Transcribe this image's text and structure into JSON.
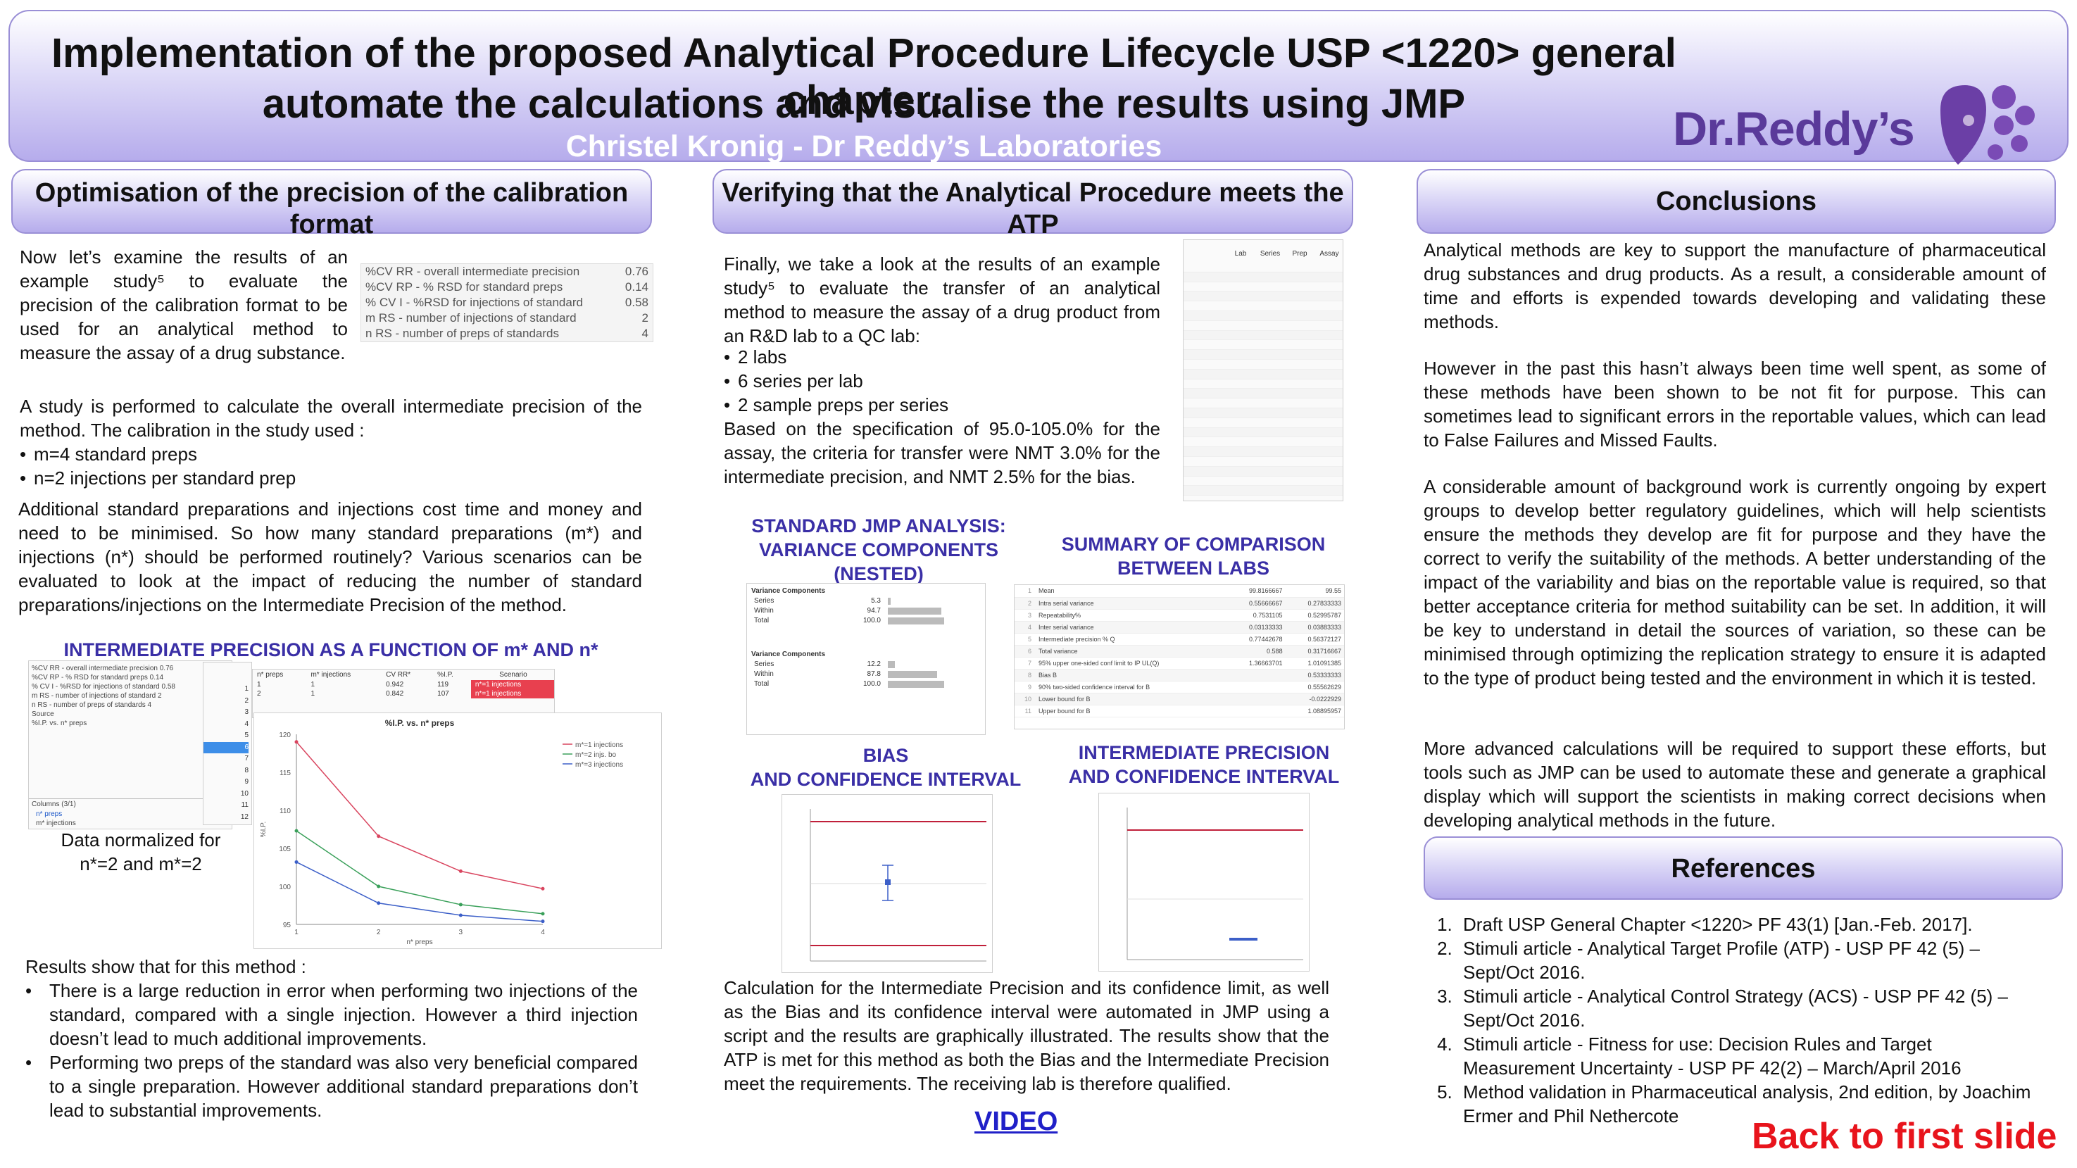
{
  "header": {
    "title_line1": "Implementation of the proposed Analytical Procedure Lifecycle USP <1220> general chapter:",
    "title_line2": "automate the calculations and visualise the results using JMP",
    "author": "Christel Kronig - Dr Reddy’s Laboratories",
    "logo_text": "Dr.Reddy’s"
  },
  "left": {
    "heading": "Optimisation of the precision of the calibration format",
    "intro": "Now let’s examine the results of an example study⁵ to evaluate the precision of the calibration format to be used for an analytical method to measure the assay of a drug substance.",
    "summary_table": [
      {
        "label": "%CV RR - overall intermediate precision",
        "value": "0.76"
      },
      {
        "label": "%CV RP - % RSD for standard preps",
        "value": "0.14"
      },
      {
        "label": "% CV I - %RSD for injections of standard",
        "value": "0.58"
      },
      {
        "label": "m RS - number of injections of standard",
        "value": "2"
      },
      {
        "label": "n RS - number of preps of standards",
        "value": "4"
      }
    ],
    "study_intro": "A study is performed to calculate the overall intermediate precision of the method. The calibration in the study used :",
    "study_bullets": [
      "m=4 standard preps",
      "n=2 injections per standard prep"
    ],
    "para2": "Additional standard preparations and injections cost time and money and need to be minimised. So how many standard preparations (m*) and injections (n*) should be performed routinely? Various scenarios can be evaluated to look at the impact of reducing the number of standard preparations/injections on the Intermediate Precision of the method.",
    "chart_heading": "INTERMEDIATE PRECISION AS A FUNCTION OF m* AND n*",
    "normalized_note_1": "Data normalized for",
    "normalized_note_2": "n*=2 and m*=2",
    "results_intro": "Results show that for this method :",
    "results_bullets": [
      "There is a large reduction in error when performing two injections of the standard, compared with a single injection. However a third injection doesn’t lead to much additional improvements.",
      "Performing two preps of the standard was also very beneficial compared to a single preparation. However additional standard preparations don’t lead to substantial improvements."
    ],
    "jmp_table_headers": [
      "n* preps",
      "m* injections",
      "CV RR*",
      "%I.P.",
      "Scenario"
    ],
    "jmp_table_rows": [
      [
        "1",
        "1",
        "0.942",
        "119",
        "n*=1 injections"
      ],
      [
        "2",
        "1",
        "0.842",
        "107",
        "n*=1 injections"
      ]
    ],
    "jmp_left_panel": [
      "%CV RR - overall intermediate precision 0.76",
      "%CV RP - % RSD for standard preps 0.14",
      "% CV I - %RSD for injections of standard 0.58",
      "m RS - number of injections of standard 2",
      "n RS - number of preps of standards 4",
      "Source",
      "%I.P. vs. n* preps"
    ],
    "jmp_columns_header": "Columns (3/1)",
    "jmp_columns": [
      "n* preps",
      "m* injections"
    ],
    "row_numbers": [
      "1",
      "2",
      "3",
      "4",
      "5",
      "6",
      "7",
      "8",
      "9",
      "10",
      "11",
      "12"
    ]
  },
  "chart_data": {
    "type": "line",
    "title": "%I.P. vs. n* preps",
    "xlabel": "n* preps",
    "ylabel": "%I.P.",
    "x": [
      1,
      2,
      3,
      4
    ],
    "ylim": [
      95,
      120
    ],
    "yticks": [
      95,
      100,
      105,
      110,
      115,
      120
    ],
    "series": [
      {
        "name": "m*=1 injections",
        "color": "#d9455f",
        "values": [
          119.0,
          106.6,
          102.0,
          99.7
        ]
      },
      {
        "name": "m*=2 injs. bo",
        "color": "#3aa05a",
        "values": [
          107.3,
          100.0,
          97.6,
          96.4
        ]
      },
      {
        "name": "m*=3 injections",
        "color": "#3c5fc8",
        "values": [
          103.2,
          97.8,
          96.2,
          95.4
        ]
      }
    ],
    "legend": "top-right"
  },
  "middle": {
    "heading": "Verifying that the Analytical Procedure meets the ATP",
    "intro": "Finally, we take a look at the results of an example study⁵ to evaluate the transfer of an analytical method to measure the assay of a drug product from an R&D lab to a QC lab:",
    "bullets": [
      "2 labs",
      "6 series per lab",
      "2 sample preps per series"
    ],
    "para2": "Based on the specification of 95.0-105.0% for the assay, the criteria for transfer were NMT 3.0% for the intermediate precision, and NMT 2.5% for the bias.",
    "data_table_headers": [
      "Lab",
      "Series",
      "Prep",
      "Assay"
    ],
    "head_jmp": "STANDARD JMP ANALYSIS: VARIANCE COMPONENTS (NESTED)",
    "head_summary": "SUMMARY OF COMPARISON BETWEEN LABS",
    "head_bias_1": "BIAS",
    "head_bias_2": "AND CONFIDENCE INTERVAL",
    "head_ip_1": "INTERMEDIATE PRECISION",
    "head_ip_2": "AND CONFIDENCE INTERVAL",
    "var_comp_title": "Variance Components",
    "var_comp_rows": [
      "Series",
      "Within",
      "Total"
    ],
    "var_comp_values_lab1": [
      "5.3",
      "94.7",
      "100.0"
    ],
    "var_comp_values_lab2": [
      "12.2",
      "87.8",
      "100.0"
    ],
    "summary_rows": [
      "Mean",
      "Intra serial variance",
      "Repeatability%",
      "Inter serial variance",
      "Intermediate precision % Q",
      "Total variance",
      "95% upper one-sided conf limit to IP UL(Q)",
      "Bias B",
      "90% two-sided confidence interval for B",
      "Lower bound for B",
      "Upper bound for B"
    ],
    "summary_lab1": [
      "99.8166667",
      "0.55666667",
      "0.7531105",
      "0.03133333",
      "0.77442678",
      "0.588",
      "1.36663701",
      "",
      "",
      "",
      ""
    ],
    "summary_lab2": [
      "99.55",
      "0.27833333",
      "0.52995787",
      "0.03883333",
      "0.56372127",
      "0.31716667",
      "1.01091385",
      "0.53333333",
      "0.55562629",
      "-0.0222929",
      "1.08895957"
    ],
    "conclusion": "Calculation for the Intermediate Precision and its confidence limit, as well as the Bias and its confidence interval were automated in JMP using a script and the results are graphically illustrated. The results show that the ATP is met for this method as both the Bias and the Intermediate Precision meet the requirements. The receiving lab is therefore qualified.",
    "video_link": "VIDEO"
  },
  "right": {
    "heading": "Conclusions",
    "para1": "Analytical methods are key to support the manufacture of pharmaceutical drug substances and drug products. As a result, a considerable amount of time and efforts is expended towards developing and validating these methods.",
    "para2": "However in the past this hasn’t always been time well spent, as some of these methods have been shown to be not fit for purpose. This can sometimes lead to significant errors in the reportable values, which can lead to False Failures and Missed Faults.",
    "para3": "A considerable amount of background work is currently ongoing by expert groups to develop better regulatory guidelines, which will help scientists ensure the methods they develop are fit for purpose and they have the correct to verify the suitability of the methods. A better understanding of the impact of the variability and bias on the reportable value is required, so that better acceptance criteria for method suitability can be set. In addition, it will be key to understand in detail the sources of variation, so these can be minimised through optimizing the replication strategy to ensure it is adapted to the type of product being tested and the environment in which it is tested.",
    "para4": "More advanced calculations will be required to support these efforts, but tools such as JMP can be used to automate these and generate a graphical display which will support the scientists in making correct decisions when developing analytical methods in the future.",
    "refs_heading": "References",
    "refs": [
      "Draft USP General Chapter <1220> PF 43(1) [Jan.-Feb. 2017].",
      "Stimuli article - Analytical Target Profile (ATP) - USP PF 42 (5) – Sept/Oct 2016.",
      "Stimuli article - Analytical Control Strategy (ACS) - USP PF 42 (5) – Sept/Oct 2016.",
      "Stimuli article - Fitness for use: Decision Rules and Target Measurement Uncertainty - USP PF 42(2) – March/April 2016",
      "Method validation in Pharmaceutical analysis, 2nd edition, by Joachim Ermer and Phil Nethercote"
    ],
    "back_link": "Back to first slide"
  },
  "colors": {
    "accent_blue": "#3a2fa6",
    "header_purple": "#b6acec",
    "logo_purple": "#5a3a9a",
    "back_red": "#e8141c",
    "link_blue": "#2020c8"
  }
}
